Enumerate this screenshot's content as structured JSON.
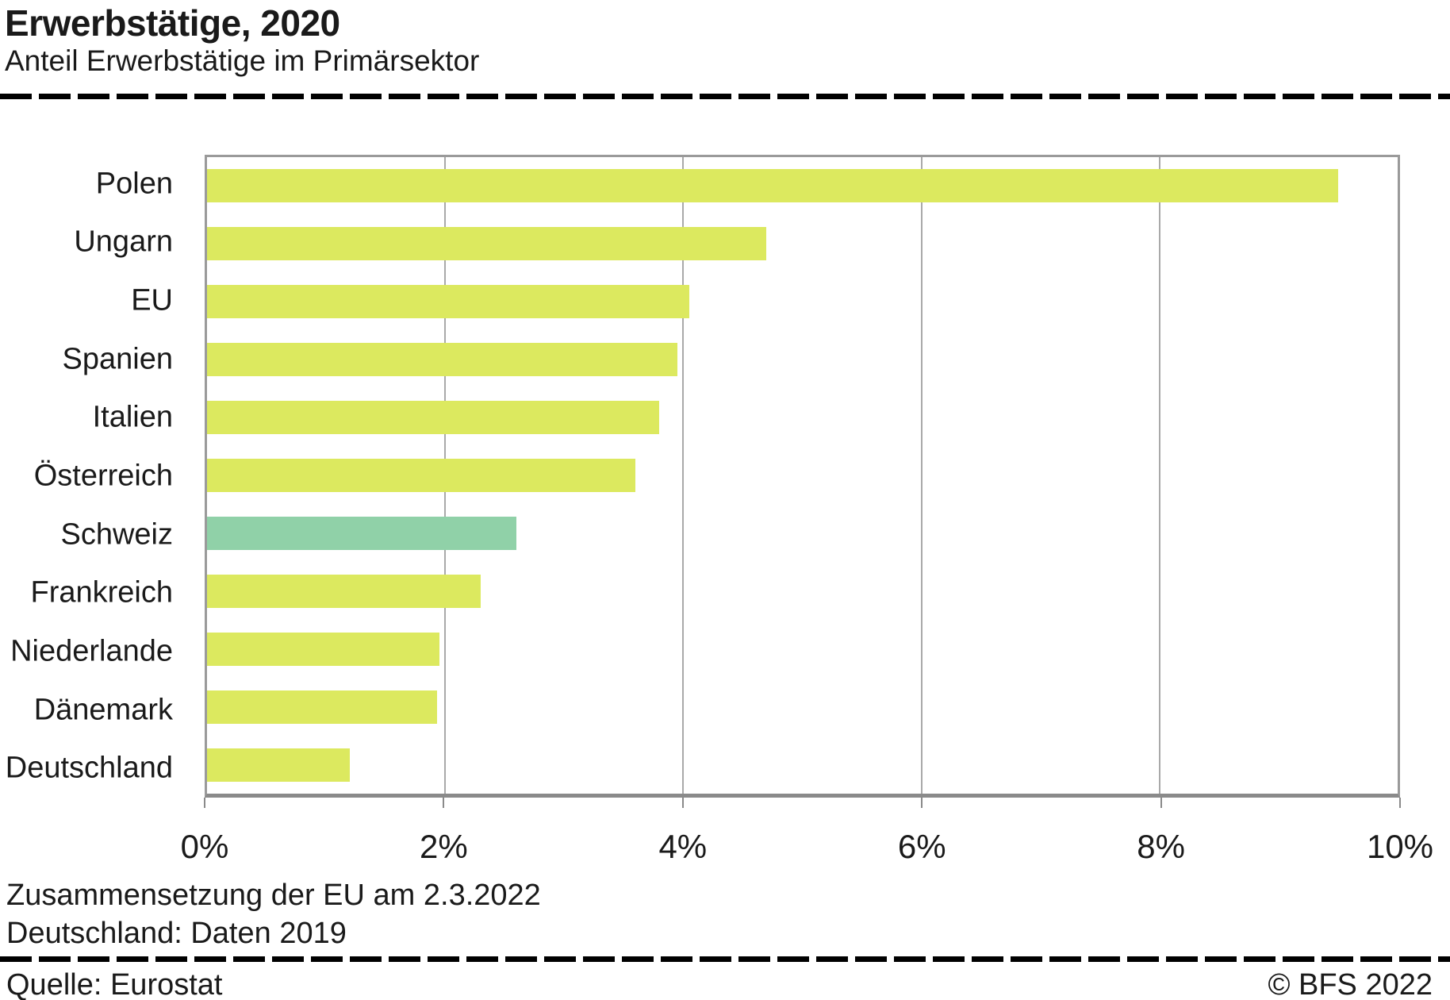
{
  "header": {
    "title": "Erwerbstätige, 2020",
    "subtitle": "Anteil Erwerbstätige im Primärsektor"
  },
  "footnotes": {
    "line1": "Zusammensetzung der EU am 2.3.2022",
    "line2": "Deutschland: Daten 2019"
  },
  "footer": {
    "source": "Quelle: Eurostat",
    "copyright": "© BFS 2022"
  },
  "colors": {
    "bar": "#dce95f",
    "bar_highlight": "#90d1a8",
    "grid": "#a9a9a9",
    "frame": "#9a9a9a",
    "axis": "#8a8a8a",
    "text": "#1a1a1a",
    "rule": "#000000"
  },
  "chart_data": {
    "type": "bar",
    "orientation": "horizontal",
    "title": "Erwerbstätige, 2020",
    "subtitle": "Anteil Erwerbstätige im Primärsektor",
    "categories": [
      "Polen",
      "Ungarn",
      "EU",
      "Spanien",
      "Italien",
      "Österreich",
      "Schweiz",
      "Frankreich",
      "Niederlande",
      "Dänemark",
      "Deutschland"
    ],
    "values": [
      9.5,
      4.7,
      4.05,
      3.95,
      3.8,
      3.6,
      2.6,
      2.3,
      1.95,
      1.93,
      1.2
    ],
    "unit": "%",
    "xlim": [
      0,
      10
    ],
    "x_tick_values": [
      0,
      2,
      4,
      6,
      8,
      10
    ],
    "x_tick_labels": [
      "0%",
      "2%",
      "4%",
      "6%",
      "8%",
      "10%"
    ],
    "highlighted_category": "Schweiz",
    "grid": "vertical-only",
    "legend": false
  }
}
